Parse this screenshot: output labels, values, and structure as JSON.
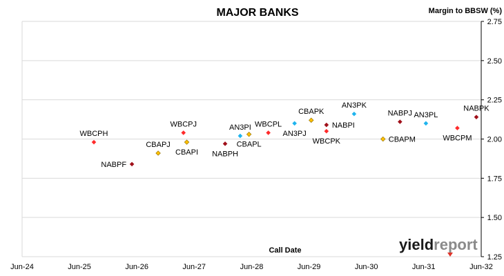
{
  "chart_data": {
    "type": "scatter",
    "title": "MAJOR BANKS",
    "ylabel": "Margin to BBSW (%)",
    "xlabel": "Call Date",
    "ylim": [
      1.25,
      2.75
    ],
    "yticks": [
      "1.25",
      "1.50",
      "1.75",
      "2.00",
      "2.25",
      "2.50",
      "2.75"
    ],
    "xlim": [
      "2024-06-01",
      "2032-06-01"
    ],
    "xticks": [
      {
        "date": "2024-06-01",
        "label": "Jun-24"
      },
      {
        "date": "2025-06-01",
        "label": "Jun-25"
      },
      {
        "date": "2026-06-01",
        "label": "Jun-26"
      },
      {
        "date": "2027-06-01",
        "label": "Jun-27"
      },
      {
        "date": "2028-06-01",
        "label": "Jun-28"
      },
      {
        "date": "2029-06-01",
        "label": "Jun-29"
      },
      {
        "date": "2030-06-01",
        "label": "Jun-30"
      },
      {
        "date": "2031-06-01",
        "label": "Jun-31"
      },
      {
        "date": "2032-06-01",
        "label": "Jun-32"
      }
    ],
    "grid": {
      "horizontal": true,
      "vertical": false
    },
    "legend": "none",
    "points": [
      {
        "label": "WBCPH",
        "x": "2025-09-01",
        "y": 1.98,
        "color": "#ff2a2a",
        "label_pos": "above"
      },
      {
        "label": "NABPF",
        "x": "2026-05-01",
        "y": 1.84,
        "color": "#a0101a",
        "label_pos": "left"
      },
      {
        "label": "CBAPJ",
        "x": "2026-10-15",
        "y": 1.91,
        "color": "#ffc000",
        "label_pos": "above"
      },
      {
        "label": "WBCPJ",
        "x": "2027-03-25",
        "y": 2.04,
        "color": "#ff2a2a",
        "label_pos": "above"
      },
      {
        "label": "CBAPI",
        "x": "2027-04-15",
        "y": 1.98,
        "color": "#ffc000",
        "label_pos": "below"
      },
      {
        "label": "NABPH",
        "x": "2027-12-15",
        "y": 1.97,
        "color": "#a0101a",
        "label_pos": "below"
      },
      {
        "label": "AN3PI",
        "x": "2028-03-20",
        "y": 2.02,
        "color": "#1fb4ee",
        "label_pos": "above"
      },
      {
        "label": "CBAPL",
        "x": "2028-05-15",
        "y": 2.03,
        "color": "#ffc000",
        "label_pos": "below"
      },
      {
        "label": "WBCPL",
        "x": "2028-09-15",
        "y": 2.04,
        "color": "#ff2a2a",
        "label_pos": "above"
      },
      {
        "label": "AN3PJ",
        "x": "2029-03-01",
        "y": 2.1,
        "color": "#1fb4ee",
        "label_pos": "below"
      },
      {
        "label": "CBAPK",
        "x": "2029-06-15",
        "y": 2.12,
        "color": "#ffc000",
        "label_pos": "above"
      },
      {
        "label": "NABPI",
        "x": "2029-09-20",
        "y": 2.09,
        "color": "#a0101a",
        "label_pos": "right"
      },
      {
        "label": "WBCPK",
        "x": "2029-09-20",
        "y": 2.05,
        "color": "#ff2a2a",
        "label_pos": "below"
      },
      {
        "label": "AN3PK",
        "x": "2030-03-15",
        "y": 2.16,
        "color": "#1fb4ee",
        "label_pos": "above"
      },
      {
        "label": "CBAPM",
        "x": "2030-09-15",
        "y": 2.0,
        "color": "#ffc000",
        "label_pos": "right"
      },
      {
        "label": "NABPJ",
        "x": "2031-01-01",
        "y": 2.11,
        "color": "#a0101a",
        "label_pos": "above"
      },
      {
        "label": "AN3PL",
        "x": "2031-06-15",
        "y": 2.1,
        "color": "#1fb4ee",
        "label_pos": "above"
      },
      {
        "label": "WBCPM",
        "x": "2032-01-01",
        "y": 2.07,
        "color": "#ff2a2a",
        "label_pos": "below"
      },
      {
        "label": "NABPK",
        "x": "2032-05-01",
        "y": 2.14,
        "color": "#a0101a",
        "label_pos": "above"
      }
    ]
  },
  "branding": {
    "logo_part1": "yield",
    "logo_part2": "report"
  }
}
